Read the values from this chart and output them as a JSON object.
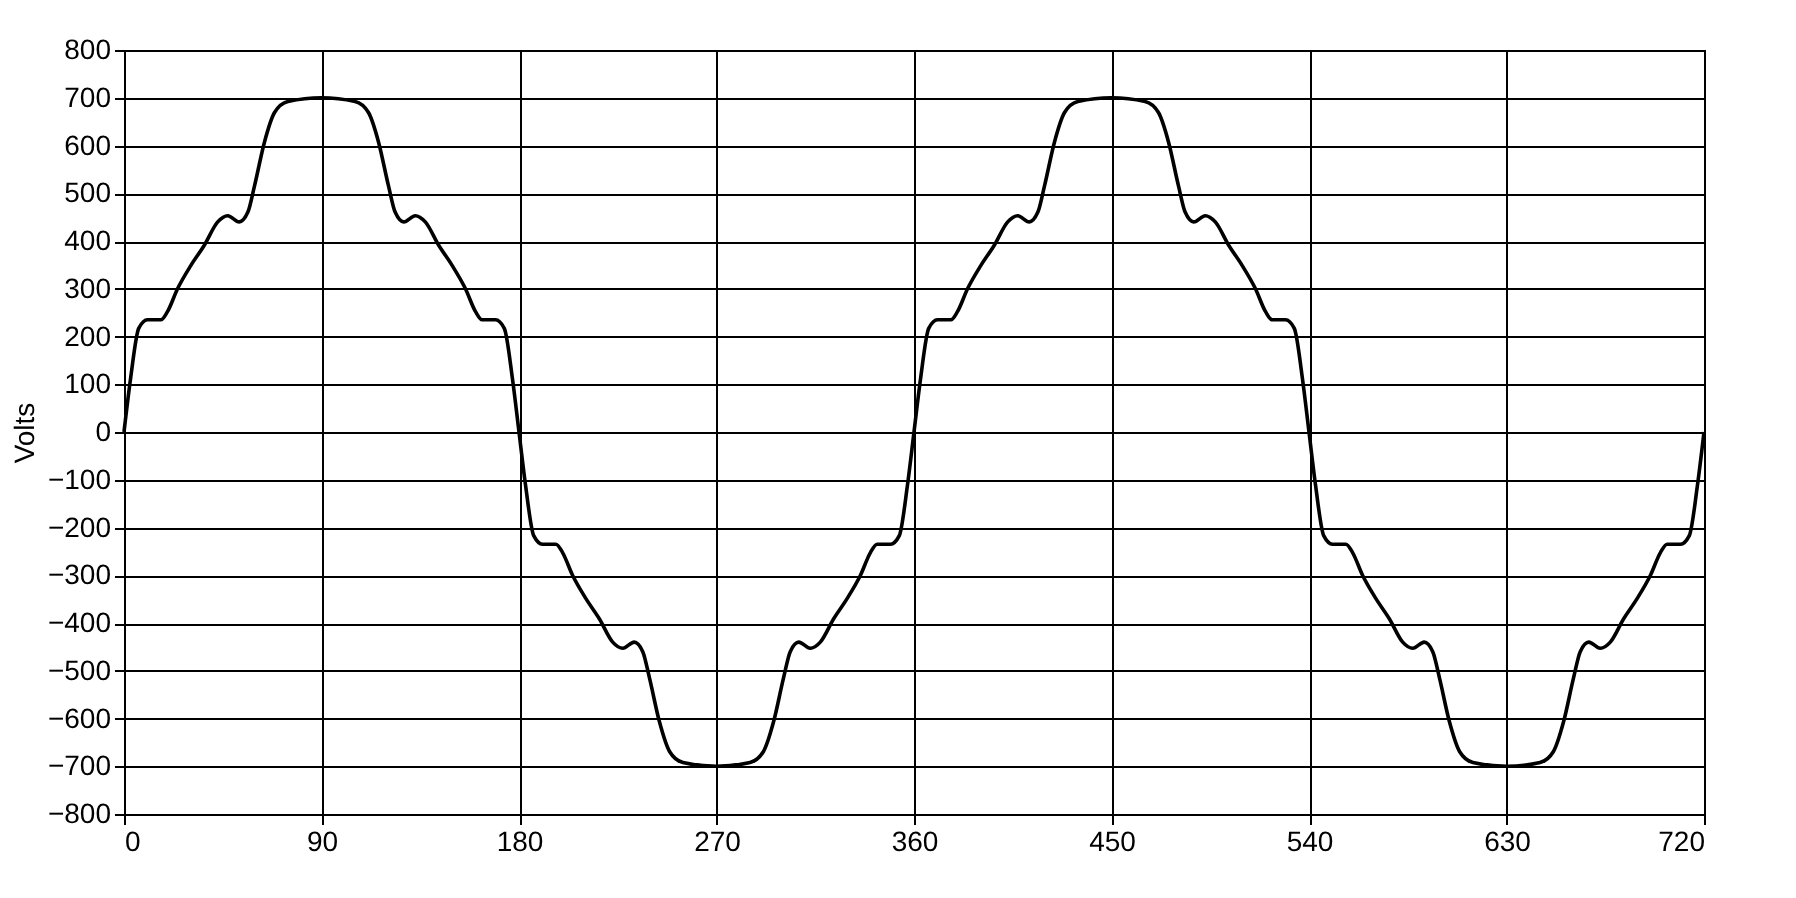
{
  "chart_data": {
    "type": "line",
    "ylabel": "Volts",
    "x": [
      0,
      3,
      6.7,
      10.7,
      16.8,
      19.8,
      24.4,
      30.5,
      36.6,
      42.7,
      47.3,
      52.5,
      56.4,
      59.5,
      64,
      68.6,
      74.7,
      90,
      105.3,
      111.4,
      116,
      120.5,
      123.6,
      127.5,
      132.7,
      137.3,
      143.4,
      149.5,
      155.6,
      160.2,
      163.2,
      169.3,
      173.3,
      177,
      180,
      183,
      186.7,
      190.7,
      196.8,
      199.8,
      204.4,
      210.5,
      216.6,
      222.7,
      227.3,
      232.5,
      236.4,
      239.5,
      244,
      248.6,
      254.7,
      270,
      285.3,
      291.4,
      296,
      300.5,
      303.6,
      307.5,
      312.7,
      317.3,
      323.4,
      329.5,
      335.6,
      340.2,
      343.2,
      349.3,
      353.3,
      357,
      360,
      363,
      366.7,
      370.7,
      376.8,
      379.8,
      384.4,
      390.5,
      396.6,
      402.7,
      407.3,
      412.5,
      416.4,
      419.5,
      424,
      428.6,
      434.7,
      450,
      465.3,
      471.4,
      476,
      480.5,
      483.6,
      487.5,
      492.7,
      497.3,
      503.4,
      509.5,
      515.6,
      520.2,
      523.2,
      529.3,
      533.3,
      537,
      540,
      543,
      546.7,
      550.7,
      556.8,
      559.8,
      564.4,
      570.5,
      576.6,
      582.7,
      587.3,
      592.5,
      596.4,
      599.5,
      604,
      608.6,
      614.7,
      630,
      645.3,
      651.4,
      656,
      660.5,
      663.6,
      667.5,
      672.7,
      677.3,
      683.4,
      689.5,
      695.6,
      700.2,
      703.2,
      709.3,
      713.3,
      717,
      720
    ],
    "series": [
      {
        "color": "#000000",
        "values": [
          0,
          112,
          217,
          235,
          235,
          252,
          300,
          349,
          391,
          440,
          453,
          440,
          460,
          516,
          607,
          669,
          692,
          700,
          692,
          669,
          607,
          516,
          460,
          440,
          453,
          440,
          391,
          349,
          300,
          252,
          235,
          235,
          217,
          112,
          0,
          -112,
          -217,
          -235,
          -235,
          -252,
          -300,
          -349,
          -391,
          -440,
          -453,
          -440,
          -460,
          -516,
          -607,
          -669,
          -692,
          -700,
          -692,
          -669,
          -607,
          -516,
          -460,
          -440,
          -453,
          -440,
          -391,
          -349,
          -300,
          -252,
          -235,
          -235,
          -217,
          -112,
          0,
          112,
          217,
          235,
          235,
          252,
          300,
          349,
          391,
          440,
          453,
          440,
          460,
          516,
          607,
          669,
          692,
          700,
          692,
          669,
          607,
          516,
          460,
          440,
          453,
          440,
          391,
          349,
          300,
          252,
          235,
          235,
          217,
          112,
          0,
          -112,
          -217,
          -235,
          -235,
          -252,
          -300,
          -349,
          -391,
          -440,
          -453,
          -440,
          -460,
          -516,
          -607,
          -669,
          -692,
          -700,
          -692,
          -669,
          -607,
          -516,
          -460,
          -440,
          -453,
          -440,
          -391,
          -349,
          -300,
          -252,
          -235,
          -235,
          -217,
          -112,
          0
        ]
      }
    ],
    "xlim": [
      0,
      720
    ],
    "xticks": [
      0,
      90,
      180,
      270,
      360,
      450,
      540,
      630,
      720
    ],
    "ylim": [
      -800,
      800
    ],
    "yticks": [
      -800,
      -700,
      -600,
      -500,
      -400,
      -300,
      -200,
      -100,
      0,
      100,
      200,
      300,
      400,
      500,
      600,
      700,
      800
    ],
    "grid": true,
    "marker": "none",
    "line_style": "solid"
  }
}
